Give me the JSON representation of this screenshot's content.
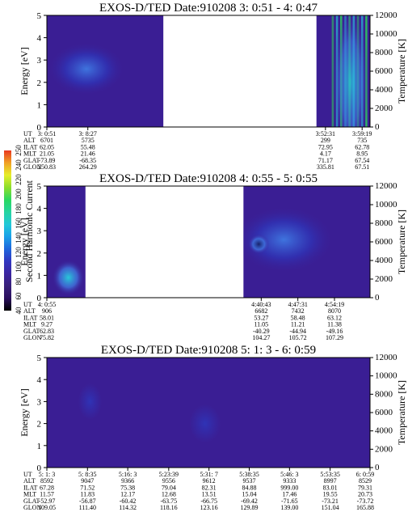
{
  "colors": {
    "background": "#3a1e94",
    "cold": "#2f33b6",
    "warm": "#3f74de",
    "hot": "#28c8d8",
    "green": "#2ed85a",
    "yellow": "#e6ee2a",
    "red": "#e83820",
    "white_gap": "#ffffff"
  },
  "colorbar": {
    "label": "Second Harmonic Current",
    "ticks": [
      "40",
      "60",
      "80",
      "100",
      "120",
      "140",
      "160",
      "180",
      "200",
      "220",
      "240",
      "250"
    ],
    "stops": [
      "#000000",
      "#2a0f5e",
      "#38207a",
      "#3b25a0",
      "#3136c0",
      "#1e66dc",
      "#1aa0e8",
      "#22c8d8",
      "#26d4a0",
      "#2ad860",
      "#8cde2c",
      "#e6ee2a",
      "#f0a024",
      "#e83820"
    ]
  },
  "row_labels": [
    "UT",
    "ALT",
    "ILAT",
    "MLT",
    "GLAT",
    "GLON"
  ],
  "chart_data": [
    {
      "type": "heatmap",
      "title": "EXOS-D/TED   Date:910208  3: 0:51 - 4: 0:47",
      "ylabel": "Energy [eV]",
      "y2label": "Temperature [K]",
      "ylim": [
        0,
        5
      ],
      "y2lim": [
        0,
        12000
      ],
      "yticks": [
        "0",
        "1",
        "2",
        "3",
        "4",
        "5"
      ],
      "y2ticks": [
        "0",
        "2000",
        "4000",
        "6000",
        "8000",
        "10000",
        "12000"
      ],
      "time_range": [
        0,
        3596
      ],
      "data_intervals": [
        [
          0,
          1296
        ],
        [
          3000,
          3596
        ]
      ],
      "features": [
        {
          "label": "blue-blob",
          "x": 440,
          "y": 2.6,
          "rx": 430,
          "ry": 1.2,
          "intensity": "warm"
        },
        {
          "label": "cyan-streaks",
          "x": 3380,
          "y": 2.0,
          "rx": 210,
          "ry": 3.4,
          "intensity": "hot"
        }
      ],
      "ut_columns": [
        {
          "t": 0,
          "UT": "3: 0:51",
          "ALT": "6701",
          "ILAT": "62.05",
          "MLT": "21.05",
          "GLAT": "-73.89",
          "GLON": "250.83"
        },
        {
          "t": 456,
          "UT": "3: 8:27",
          "ALT": "5735",
          "ILAT": "55.48",
          "MLT": "21.46",
          "GLAT": "-68.35",
          "GLON": "264.29"
        },
        {
          "t": 3100,
          "UT": "3:52:31",
          "ALT": "299",
          "ILAT": "72.95",
          "MLT": "4.17",
          "GLAT": "71.17",
          "GLON": "335.81"
        },
        {
          "t": 3508,
          "UT": "3:59:19",
          "ALT": "735",
          "ILAT": "62.78",
          "MLT": "8.95",
          "GLAT": "67.54",
          "GLON": "67.51"
        }
      ]
    },
    {
      "type": "heatmap",
      "title": "EXOS-D/TED   Date:910208  4: 0:55 - 5: 0:55",
      "ylabel": "Energy [eV]",
      "y2label": "Temperature [K]",
      "ylim": [
        0,
        5
      ],
      "y2lim": [
        0,
        12000
      ],
      "yticks": [
        "0",
        "1",
        "2",
        "3",
        "4",
        "5"
      ],
      "y2ticks": [
        "0",
        "2000",
        "4000",
        "6000",
        "8000",
        "10000",
        "12000"
      ],
      "time_range": [
        0,
        3600
      ],
      "data_intervals": [
        [
          0,
          430
        ],
        [
          2190,
          3600
        ]
      ],
      "features": [
        {
          "label": "left-cyan",
          "x": 240,
          "y": 0.9,
          "rx": 180,
          "ry": 0.8,
          "intensity": "hot"
        },
        {
          "label": "blue-blob",
          "x": 2640,
          "y": 2.6,
          "rx": 560,
          "ry": 1.5,
          "intensity": "warm"
        },
        {
          "label": "core",
          "x": 2360,
          "y": 2.4,
          "rx": 120,
          "ry": 0.45,
          "intensity": "core"
        }
      ],
      "ut_columns": [
        {
          "t": 0,
          "UT": "4: 0:55",
          "ALT": "906",
          "ILAT": "58.01",
          "MLT": "9.27",
          "GLAT": "62.83",
          "GLON": "75.82"
        },
        {
          "t": 2388,
          "UT": "4:40:43",
          "ALT": "6682",
          "ILAT": "53.27",
          "MLT": "11.05",
          "GLAT": "-40.29",
          "GLON": "104.27"
        },
        {
          "t": 2796,
          "UT": "4:47:31",
          "ALT": "7432",
          "ILAT": "58.48",
          "MLT": "11.21",
          "GLAT": "-44.94",
          "GLON": "105.72"
        },
        {
          "t": 3204,
          "UT": "4:54:19",
          "ALT": "8070",
          "ILAT": "63.12",
          "MLT": "11.38",
          "GLAT": "-49.16",
          "GLON": "107.29"
        }
      ]
    },
    {
      "type": "heatmap",
      "title": "EXOS-D/TED   Date:910208  5: 1: 3 - 6: 0:59",
      "ylabel": "Energy [eV]",
      "y2label": "Temperature [K]",
      "ylim": [
        0,
        5
      ],
      "y2lim": [
        0,
        12000
      ],
      "yticks": [
        "0",
        "1",
        "2",
        "3",
        "4",
        "5"
      ],
      "y2ticks": [
        "0",
        "2000",
        "4000",
        "6000",
        "8000",
        "10000",
        "12000"
      ],
      "time_range": [
        0,
        3596
      ],
      "data_intervals": [
        [
          0,
          3596
        ]
      ],
      "features": [
        {
          "label": "faint-low",
          "x": 480,
          "y": 3.0,
          "rx": 240,
          "ry": 1.5,
          "intensity": "cold"
        },
        {
          "label": "faint-mid",
          "x": 1760,
          "y": 2.0,
          "rx": 320,
          "ry": 1.6,
          "intensity": "cold"
        }
      ],
      "ut_columns": [
        {
          "t": 0,
          "UT": "5: 1: 3",
          "ALT": "8592",
          "ILAT": "67.28",
          "MLT": "11.57",
          "GLAT": "-52.97",
          "GLON": "109.05"
        },
        {
          "t": 452,
          "UT": "5: 8:35",
          "ALT": "9047",
          "ILAT": "71.52",
          "MLT": "11.83",
          "GLAT": "-56.87",
          "GLON": "111.40"
        },
        {
          "t": 900,
          "UT": "5:16: 3",
          "ALT": "9366",
          "ILAT": "75.38",
          "MLT": "12.17",
          "GLAT": "-60.42",
          "GLON": "114.32"
        },
        {
          "t": 1356,
          "UT": "5:23:39",
          "ALT": "9556",
          "ILAT": "79.04",
          "MLT": "12.68",
          "GLAT": "-63.75",
          "GLON": "118.16"
        },
        {
          "t": 1804,
          "UT": "5:31: 7",
          "ALT": "9612",
          "ILAT": "82.31",
          "MLT": "13.51",
          "GLAT": "-66.75",
          "GLON": "123.16"
        },
        {
          "t": 2252,
          "UT": "5:38:35",
          "ALT": "9537",
          "ILAT": "84.88",
          "MLT": "15.04",
          "GLAT": "-69.42",
          "GLON": "129.89"
        },
        {
          "t": 2700,
          "UT": "5:46: 3",
          "ALT": "9333",
          "ILAT": "999.00",
          "MLT": "17.46",
          "GLAT": "-71.65",
          "GLON": "139.00"
        },
        {
          "t": 3152,
          "UT": "5:53:35",
          "ALT": "8997",
          "ILAT": "83.01",
          "MLT": "19.55",
          "GLAT": "-73.21",
          "GLON": "151.04"
        },
        {
          "t": 3596,
          "UT": "6: 0:59",
          "ALT": "8529",
          "ILAT": "79.31",
          "MLT": "20.73",
          "GLAT": "-73.72",
          "GLON": "165.88"
        }
      ]
    }
  ]
}
